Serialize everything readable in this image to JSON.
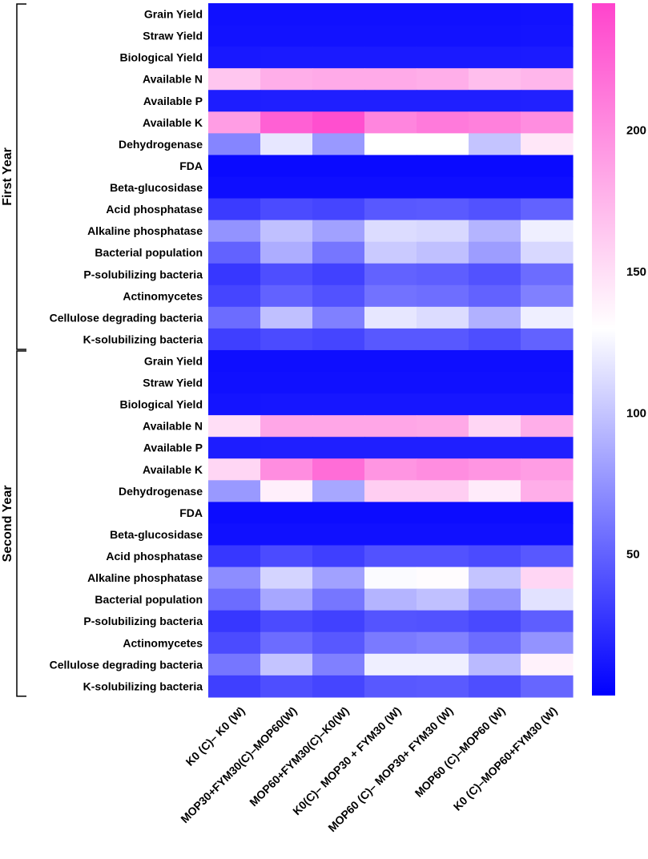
{
  "chart_data": {
    "type": "heatmap",
    "title": "",
    "color_scale": {
      "colors": [
        "#0000ff",
        "#ffffff",
        "#ff44cc"
      ],
      "value_domain": [
        0,
        130,
        245
      ],
      "ticks": [
        "50",
        "100",
        "150",
        "200"
      ]
    },
    "groups": [
      {
        "label": "First Year",
        "rows": [
          0,
          15
        ]
      },
      {
        "label": "Second Year",
        "rows": [
          16,
          31
        ]
      }
    ],
    "columns": [
      "K0 (C)– K0 (W)",
      "MOP30+FYM30(C)–MOP60(W)",
      "MOP60+FYM30(C)–K0(W)",
      "K0(C)– MOP30 + FYM30 (W)",
      "MOP60 (C)– MOP30+ FYM30 (W)",
      "MOP60 (C)–MOP60 (W)",
      "K0 (C)–MOP60+FYM30 (W)"
    ],
    "rows": [
      "Grain Yield",
      "Straw Yield",
      "Biological Yield",
      "Available N",
      "Available P",
      "Available K",
      "Dehydrogenase",
      "FDA",
      "Beta-glucosidase",
      "Acid phosphatase",
      "Alkaline phosphatase",
      "Bacterial population",
      "P-solubilizing bacteria",
      "Actinomycetes",
      "Cellulose degrading bacteria",
      "K-solubilizing bacteria",
      "Grain Yield",
      "Straw Yield",
      "Biological Yield",
      "Available N",
      "Available P",
      "Available K",
      "Dehydrogenase",
      "FDA",
      "Beta-glucosidase",
      "Acid phosphatase",
      "Alkaline phosphatase",
      "Bacterial population",
      "P-solubilizing bacteria",
      "Actinomycetes",
      "Cellulose degrading bacteria",
      "K-solubilizing bacteria"
    ],
    "values": [
      [
        8,
        8,
        8,
        8,
        8,
        8,
        9
      ],
      [
        9,
        9,
        9,
        9,
        9,
        9,
        10
      ],
      [
        12,
        13,
        13,
        13,
        13,
        13,
        14
      ],
      [
        165,
        180,
        182,
        182,
        180,
        170,
        175
      ],
      [
        15,
        16,
        16,
        16,
        16,
        16,
        17
      ],
      [
        190,
        228,
        238,
        205,
        212,
        208,
        200
      ],
      [
        68,
        118,
        78,
        130,
        130,
        100,
        145
      ],
      [
        5,
        5,
        5,
        5,
        5,
        5,
        5
      ],
      [
        7,
        7,
        7,
        7,
        7,
        7,
        7
      ],
      [
        30,
        38,
        35,
        45,
        46,
        42,
        50
      ],
      [
        75,
        98,
        82,
        112,
        110,
        92,
        122
      ],
      [
        50,
        88,
        60,
        103,
        98,
        80,
        110
      ],
      [
        28,
        40,
        33,
        50,
        48,
        42,
        55
      ],
      [
        35,
        50,
        42,
        58,
        56,
        50,
        65
      ],
      [
        55,
        98,
        65,
        118,
        112,
        90,
        122
      ],
      [
        32,
        38,
        35,
        45,
        45,
        40,
        50
      ],
      [
        7,
        7,
        7,
        7,
        7,
        7,
        7
      ],
      [
        8,
        8,
        8,
        8,
        8,
        8,
        8
      ],
      [
        10,
        11,
        11,
        11,
        11,
        11,
        11
      ],
      [
        150,
        185,
        185,
        185,
        183,
        155,
        180
      ],
      [
        15,
        16,
        16,
        16,
        16,
        16,
        16
      ],
      [
        155,
        200,
        220,
        195,
        200,
        195,
        190
      ],
      [
        78,
        140,
        85,
        160,
        160,
        142,
        180
      ],
      [
        6,
        6,
        6,
        6,
        6,
        6,
        6
      ],
      [
        8,
        8,
        8,
        8,
        8,
        8,
        8
      ],
      [
        28,
        38,
        32,
        42,
        42,
        38,
        45
      ],
      [
        72,
        108,
        82,
        128,
        132,
        100,
        155
      ],
      [
        55,
        85,
        60,
        92,
        98,
        75,
        115
      ],
      [
        28,
        38,
        33,
        43,
        42,
        37,
        48
      ],
      [
        38,
        55,
        45,
        62,
        66,
        55,
        75
      ],
      [
        60,
        100,
        65,
        122,
        122,
        95,
        138
      ],
      [
        32,
        40,
        35,
        45,
        46,
        40,
        52
      ]
    ]
  }
}
